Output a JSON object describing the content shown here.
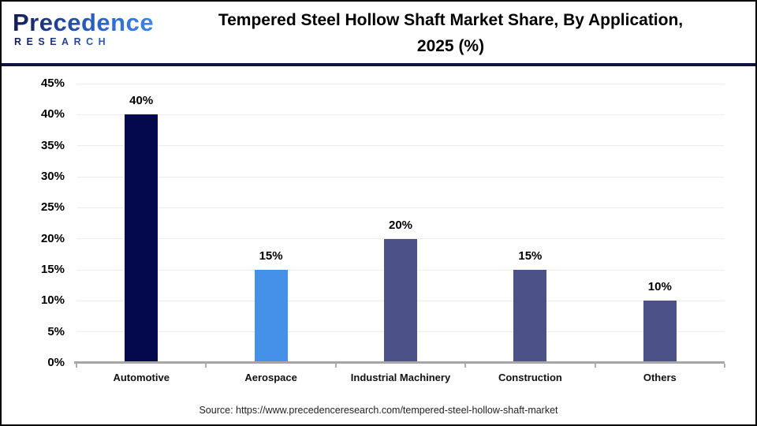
{
  "header": {
    "logo": {
      "name": "Precedence",
      "subtext": "RESEARCH"
    },
    "title_line1": "Tempered Steel Hollow Shaft Market Share, By Application,",
    "title_line2": "2025 (%)"
  },
  "chart_data": {
    "type": "bar",
    "title": "Tempered Steel Hollow Shaft Market Share, By Application, 2025 (%)",
    "categories": [
      "Automotive",
      "Aerospace",
      "Industrial Machinery",
      "Construction",
      "Others"
    ],
    "values": [
      40,
      15,
      20,
      15,
      10
    ],
    "value_labels": [
      "40%",
      "15%",
      "20%",
      "15%",
      "10%"
    ],
    "xlabel": "",
    "ylabel": "",
    "ylim": [
      0,
      45
    ],
    "ytick_step": 5,
    "ytick_labels": [
      "0%",
      "5%",
      "10%",
      "15%",
      "20%",
      "25%",
      "30%",
      "35%",
      "40%",
      "45%"
    ],
    "grid": true,
    "legend": "none",
    "bar_colors": [
      "#04094d",
      "#4590e8",
      "#4c5187",
      "#4c5187",
      "#4c5187"
    ]
  },
  "footer": {
    "source": "Source: https://www.precedenceresearch.com/tempered-steel-hollow-shaft-market"
  },
  "colors": {
    "background": "#ffffff",
    "border": "#000000",
    "divider": "#10123f",
    "grid": "#ededed",
    "axis": "#a6a6a6",
    "tick": "#b0b0b0",
    "title_text": "#000000"
  }
}
